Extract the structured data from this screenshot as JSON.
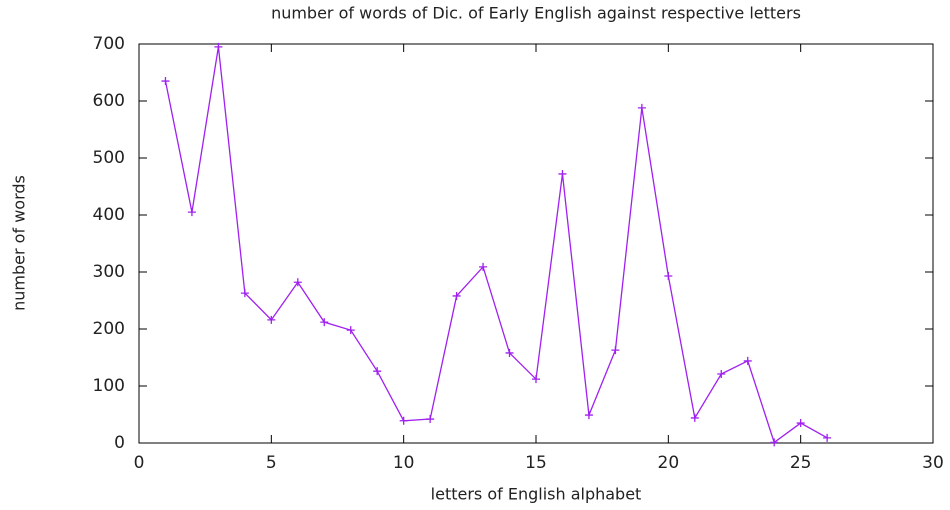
{
  "chart_data": {
    "type": "line",
    "title": "number of words of Dic. of Early English against respective letters",
    "x_label": "letters of English alphabet",
    "y_label": "number of words",
    "x": [
      1,
      2,
      3,
      4,
      5,
      6,
      7,
      8,
      9,
      10,
      11,
      12,
      13,
      14,
      15,
      16,
      17,
      18,
      19,
      20,
      21,
      22,
      23,
      24,
      25,
      26
    ],
    "series": [
      {
        "color": "#a020f0",
        "values": [
          635,
          405,
          695,
          263,
          216,
          282,
          212,
          198,
          126,
          39,
          42,
          258,
          309,
          158,
          112,
          472,
          49,
          163,
          588,
          293,
          44,
          121,
          144,
          1,
          35,
          9
        ]
      }
    ],
    "xlim": [
      0,
      30
    ],
    "xticks": [
      0,
      5,
      10,
      15,
      20,
      25,
      30
    ],
    "ylim": [
      0,
      700
    ],
    "yticks": [
      0,
      100,
      200,
      300,
      400,
      500,
      600,
      700
    ],
    "marker": "+",
    "grid": false
  }
}
